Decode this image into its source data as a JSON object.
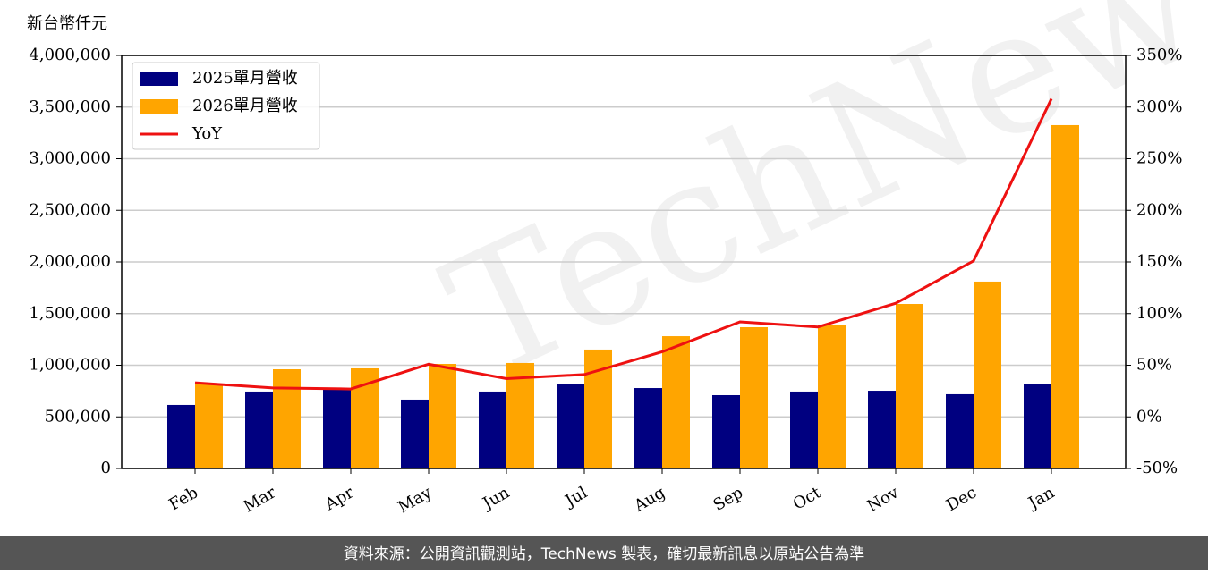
{
  "chart_data": {
    "type": "bar-line",
    "y_label": "新台幣仟元",
    "watermark": "TechNews",
    "source": "資料來源：公開資訊觀測站，TechNews 製表，確切最新訊息以原站公告為準",
    "categories": [
      "Feb",
      "Mar",
      "Apr",
      "May",
      "Jun",
      "Jul",
      "Aug",
      "Sep",
      "Oct",
      "Nov",
      "Dec",
      "Jan"
    ],
    "series": [
      {
        "name": "2025單月營收",
        "color": "#000080",
        "type": "bar",
        "values": [
          615000,
          745000,
          762000,
          667000,
          745000,
          814000,
          779000,
          710000,
          745000,
          753000,
          719000,
          814000
        ]
      },
      {
        "name": "2026單月營收",
        "color": "#ffa500",
        "type": "bar",
        "values": [
          823000,
          961000,
          970000,
          1013000,
          1022000,
          1152000,
          1281000,
          1368000,
          1394000,
          1593000,
          1810000,
          3325000
        ]
      },
      {
        "name": "YoY",
        "color": "#ee1111",
        "type": "line",
        "axis": "y2",
        "values": [
          33,
          28,
          27,
          51,
          37,
          41,
          63,
          92,
          87,
          110,
          151,
          308
        ]
      }
    ],
    "ylim": [
      0,
      4000000
    ],
    "yticks": [
      0,
      {
        "value": 500000,
        "label": "500,000"
      },
      {
        "value": 1000000,
        "label": "1,000,000"
      },
      {
        "value": 1500000,
        "label": "1,500,000"
      },
      {
        "value": 2000000,
        "label": "2,000,000"
      },
      {
        "value": 2500000,
        "label": "2,500,000"
      },
      {
        "value": 3000000,
        "label": "3,000,000"
      },
      {
        "value": 3500000,
        "label": "3,500,000"
      },
      {
        "value": 4000000,
        "label": "4,000,000"
      }
    ],
    "y2lim": [
      -50,
      350
    ],
    "y2ticks": [
      {
        "value": -50,
        "label": "-50%"
      },
      {
        "value": 0,
        "label": "0%"
      },
      {
        "value": 50,
        "label": "50%"
      },
      {
        "value": 100,
        "label": "100%"
      },
      {
        "value": 150,
        "label": "150%"
      },
      {
        "value": 200,
        "label": "200%"
      },
      {
        "value": 250,
        "label": "250%"
      },
      {
        "value": 300,
        "label": "300%"
      },
      {
        "value": 350,
        "label": "350%"
      }
    ],
    "grid": true,
    "legend": "upper left"
  }
}
